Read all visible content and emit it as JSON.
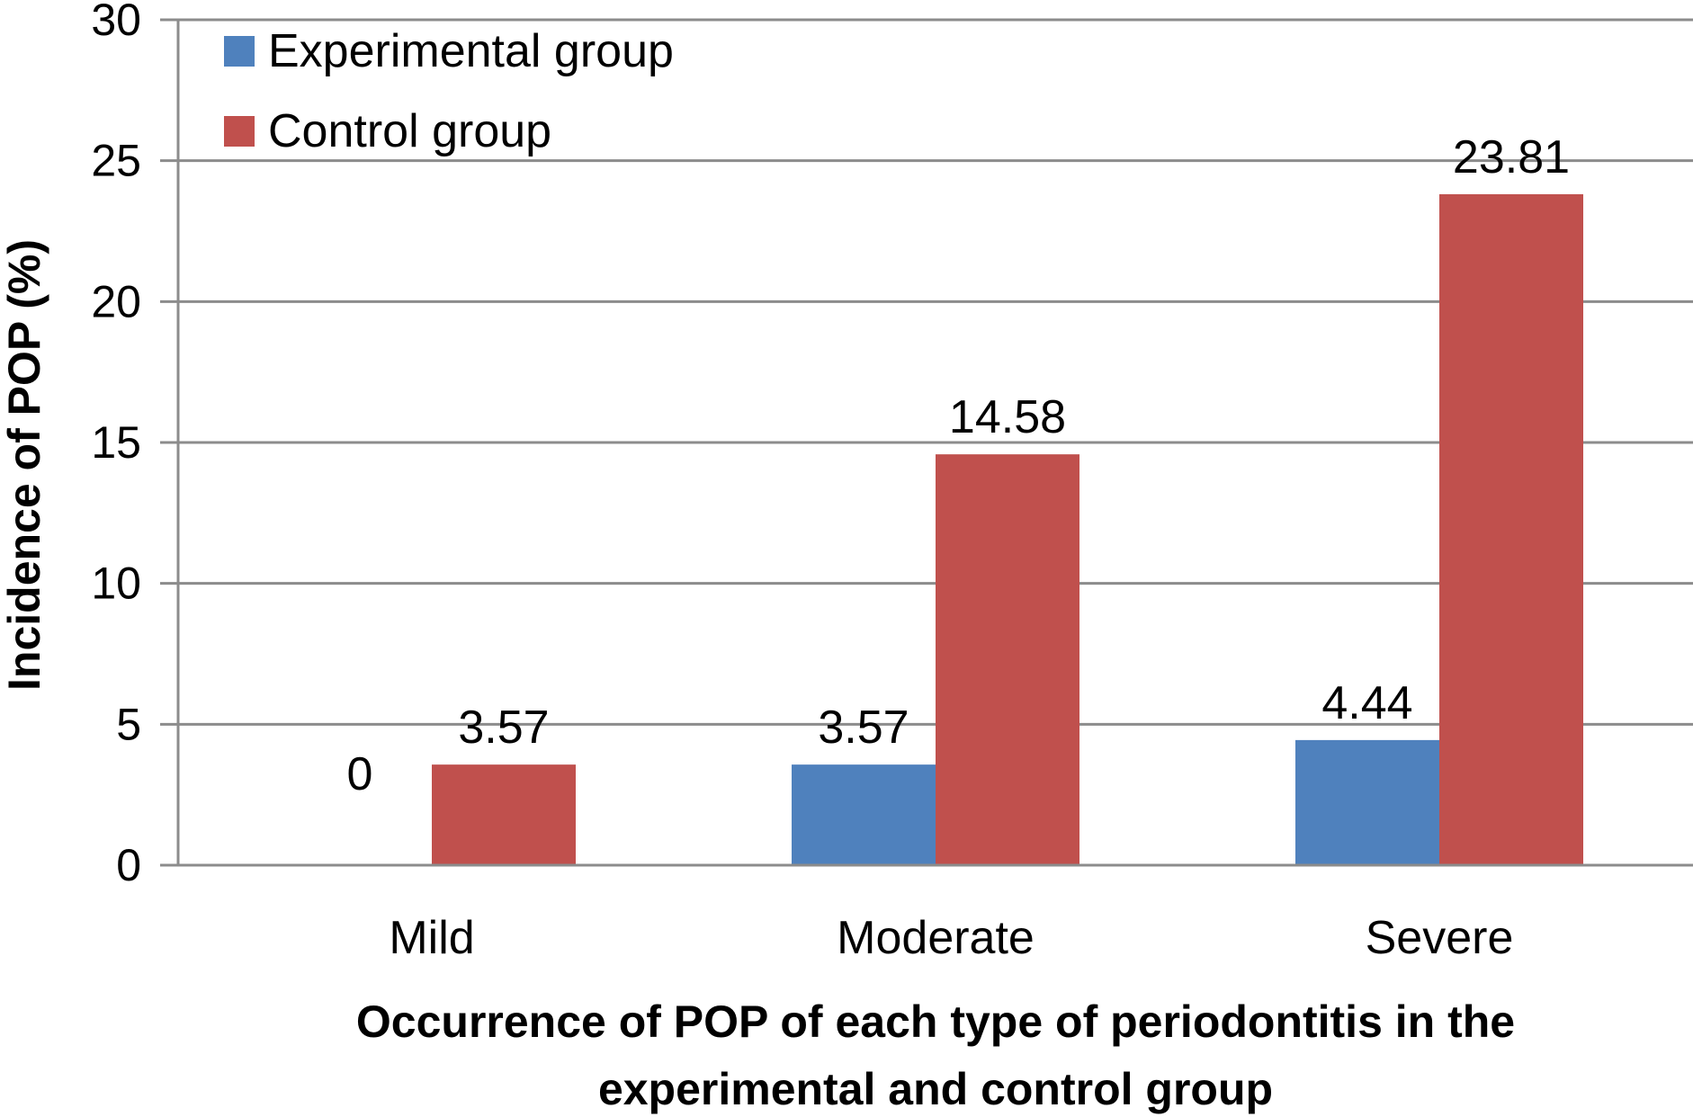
{
  "chart_data": {
    "type": "bar",
    "categories": [
      "Mild",
      "Moderate",
      "Severe"
    ],
    "series": [
      {
        "name": "Experimental group",
        "color": "#4f81bd",
        "values": [
          0,
          3.57,
          4.44
        ],
        "labels": [
          "0",
          "3.57",
          "4.44"
        ]
      },
      {
        "name": "Control group",
        "color": "#c0504d",
        "values": [
          3.57,
          14.58,
          23.81
        ],
        "labels": [
          "3.57",
          "14.58",
          "23.81"
        ]
      }
    ],
    "ylim": [
      0,
      30
    ],
    "yticks": [
      "0",
      "5",
      "10",
      "15",
      "20",
      "25",
      "30"
    ],
    "ylabel": "Incidence of POP (%)",
    "xlabel_lines": [
      "Occurrence of POP of each type of periodontitis in the",
      "experimental and control group"
    ],
    "grid": true,
    "legend": "top-left"
  }
}
